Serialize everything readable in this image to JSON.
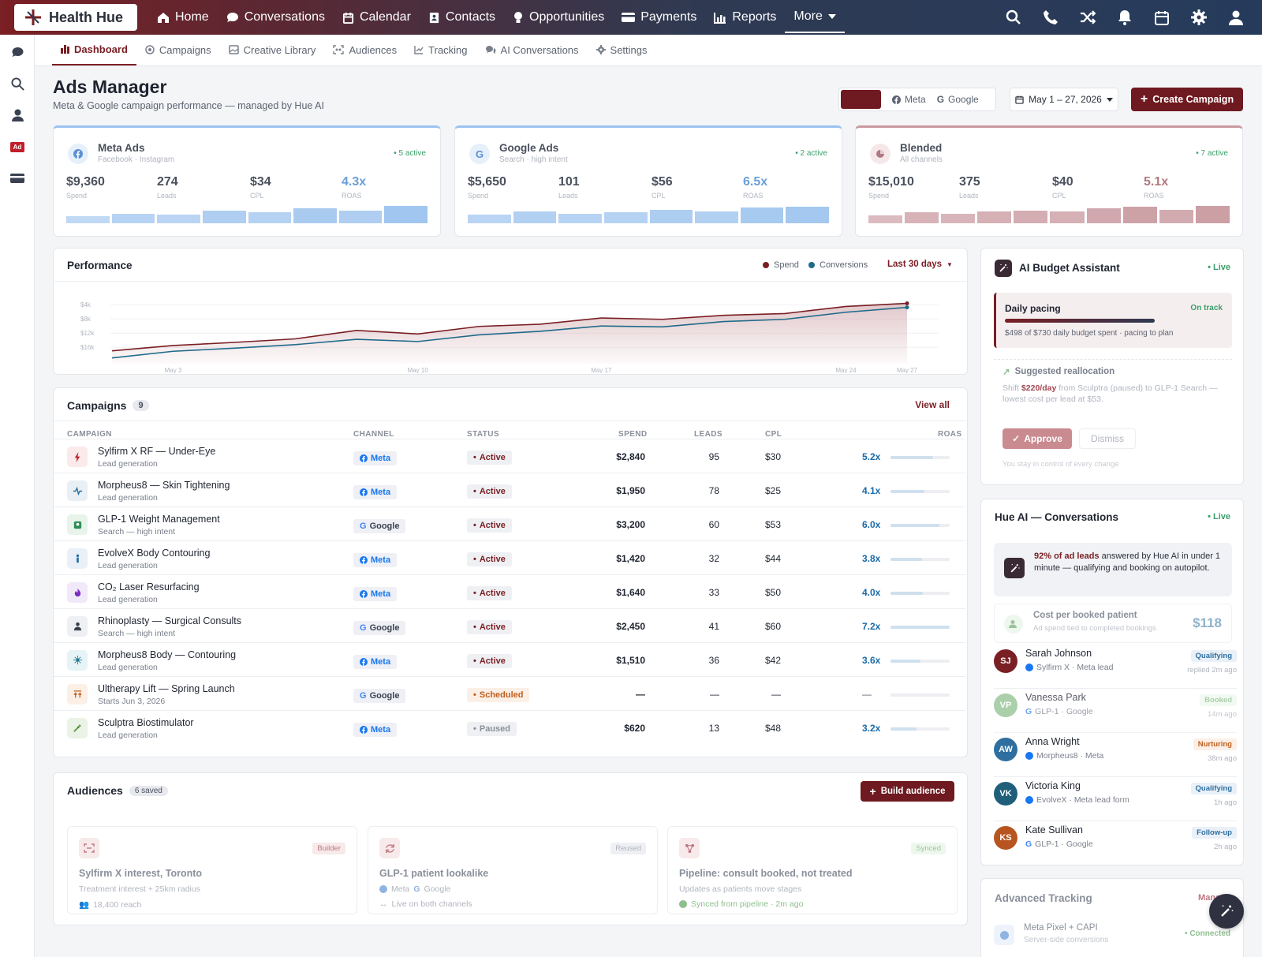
{
  "app": {
    "name": "Health Hue"
  },
  "topnav": {
    "items": [
      {
        "label": "Home",
        "icon": "home-icon"
      },
      {
        "label": "Conversations",
        "icon": "chat-icon"
      },
      {
        "label": "Calendar",
        "icon": "calendar-icon"
      },
      {
        "label": "Contacts",
        "icon": "contacts-icon"
      },
      {
        "label": "Opportunities",
        "icon": "lightbulb-icon"
      },
      {
        "label": "Payments",
        "icon": "card-icon"
      },
      {
        "label": "Reports",
        "icon": "bar-chart-icon"
      },
      {
        "label": "More",
        "icon": "caret-down-icon"
      }
    ],
    "right_icons": [
      "search-icon",
      "phone-icon",
      "shuffle-icon",
      "bell-icon",
      "calendar-icon",
      "gear-icon",
      "user-icon"
    ]
  },
  "sidebar": {
    "icons": [
      "chat-icon",
      "search-icon",
      "user-icon",
      "ad-icon",
      "card-icon"
    ],
    "ad_label": "Ad"
  },
  "subnav": {
    "tabs": [
      {
        "label": "Dashboard",
        "icon": "bar-chart-icon"
      },
      {
        "label": "Campaigns",
        "icon": "target-icon"
      },
      {
        "label": "Creative Library",
        "icon": "image-icon"
      },
      {
        "label": "Audiences",
        "icon": "scan-icon"
      },
      {
        "label": "Tracking",
        "icon": "line-chart-icon"
      },
      {
        "label": "AI Conversations",
        "icon": "chat-icon"
      },
      {
        "label": "Settings",
        "icon": "gear-icon"
      }
    ]
  },
  "header": {
    "title": "Ads Manager",
    "subtitle": "Meta & Google campaign performance — managed by Hue AI",
    "channel_toggle": {
      "meta": "Meta",
      "google": "Google"
    },
    "date_range": "May 1 – 27, 2026",
    "create_label": "Create Campaign"
  },
  "kpis": [
    {
      "name": "Meta Ads",
      "sub": "Facebook · Instagram",
      "active": "5 active",
      "stats": [
        {
          "v": "$9,360",
          "l": "Spend"
        },
        {
          "v": "274",
          "l": "Leads"
        },
        {
          "v": "$34",
          "l": "CPL"
        },
        {
          "v": "4.3x",
          "l": "ROAS"
        }
      ],
      "bars": [
        0.35,
        0.5,
        0.45,
        0.65,
        0.55,
        0.75,
        0.65,
        0.9
      ]
    },
    {
      "name": "Google Ads",
      "sub": "Search · high intent",
      "active": "2 active",
      "stats": [
        {
          "v": "$5,650",
          "l": "Spend"
        },
        {
          "v": "101",
          "l": "Leads"
        },
        {
          "v": "$56",
          "l": "CPL"
        },
        {
          "v": "6.5x",
          "l": "ROAS"
        }
      ],
      "bars": [
        0.45,
        0.6,
        0.5,
        0.55,
        0.7,
        0.6,
        0.8,
        0.85
      ]
    },
    {
      "name": "Blended",
      "sub": "All channels",
      "active": "7 active",
      "stats": [
        {
          "v": "$15,010",
          "l": "Spend"
        },
        {
          "v": "375",
          "l": "Leads"
        },
        {
          "v": "$40",
          "l": "CPL"
        },
        {
          "v": "5.1x",
          "l": "ROAS"
        }
      ],
      "bars": [
        0.4,
        0.55,
        0.5,
        0.6,
        0.65,
        0.6,
        0.75,
        0.85,
        0.7,
        0.9
      ]
    }
  ],
  "performance": {
    "title": "Performance",
    "legend_spend": "Spend",
    "legend_conv": "Conversions",
    "range_label": "Last 30 days"
  },
  "chart_data": {
    "type": "area",
    "x": [
      "May 1",
      "May 3",
      "May 5",
      "May 7",
      "May 9",
      "May 11",
      "May 13",
      "May 15",
      "May 17",
      "May 19",
      "May 21",
      "May 23",
      "May 25",
      "May 27"
    ],
    "x_ticks": [
      "May 3",
      "May 10",
      "May 17",
      "May 24",
      "May 27"
    ],
    "y_ticks": [
      "$4k",
      "$8k",
      "$12k",
      "$16k"
    ],
    "ylim": [
      2,
      18
    ],
    "series": [
      {
        "name": "Spend",
        "color": "#7a1f24",
        "values": [
          4.9,
          6.1,
          6.8,
          7.6,
          9.5,
          8.7,
          10.4,
          10.9,
          12.3,
          12.0,
          12.9,
          13.3,
          14.9,
          15.6
        ]
      },
      {
        "name": "Conversions",
        "color": "#1f6a8a",
        "values": [
          3.3,
          4.8,
          5.5,
          6.3,
          7.5,
          7.0,
          8.5,
          9.3,
          10.5,
          10.3,
          11.5,
          12.0,
          13.6,
          14.7
        ]
      }
    ]
  },
  "campaigns": {
    "title": "Campaigns",
    "count": "9",
    "view_all": "View all",
    "headers": {
      "campaign": "CAMPAIGN",
      "channel": "CHANNEL",
      "status": "STATUS",
      "spend": "SPEND",
      "leads": "LEADS",
      "cpl": "CPL",
      "roas": "ROAS"
    },
    "rows": [
      {
        "name": "Sylfirm X RF — Under-Eye",
        "sub": "Lead generation",
        "icon": "bolt-icon",
        "channel": "Meta",
        "status": "Active",
        "spend": "$2,840",
        "leads": "95",
        "cpl": "$30",
        "roas": "5.2x",
        "roas_frac": 0.72
      },
      {
        "name": "Morpheus8 — Skin Tightening",
        "sub": "Lead generation",
        "icon": "pulse-icon",
        "channel": "Meta",
        "status": "Active",
        "spend": "$1,950",
        "leads": "78",
        "cpl": "$25",
        "roas": "4.1x",
        "roas_frac": 0.57
      },
      {
        "name": "GLP-1 Weight Management",
        "sub": "Search — high intent",
        "icon": "scale-icon",
        "channel": "Google",
        "status": "Active",
        "spend": "$3,200",
        "leads": "60",
        "cpl": "$53",
        "roas": "6.0x",
        "roas_frac": 0.83
      },
      {
        "name": "EvolveX Body Contouring",
        "sub": "Lead generation",
        "icon": "body-icon",
        "channel": "Meta",
        "status": "Active",
        "spend": "$1,420",
        "leads": "32",
        "cpl": "$44",
        "roas": "3.8x",
        "roas_frac": 0.53
      },
      {
        "name": "CO₂ Laser Resurfacing",
        "sub": "Lead generation",
        "icon": "flame-icon",
        "channel": "Meta",
        "status": "Active",
        "spend": "$1,640",
        "leads": "33",
        "cpl": "$50",
        "roas": "4.0x",
        "roas_frac": 0.55
      },
      {
        "name": "Rhinoplasty — Surgical Consults",
        "sub": "Search — high intent",
        "icon": "person-icon",
        "channel": "Google",
        "status": "Active",
        "spend": "$2,450",
        "leads": "41",
        "cpl": "$60",
        "roas": "7.2x",
        "roas_frac": 1.0
      },
      {
        "name": "Morpheus8 Body — Contouring",
        "sub": "Lead generation",
        "icon": "sparkle-icon",
        "channel": "Meta",
        "status": "Active",
        "spend": "$1,510",
        "leads": "36",
        "cpl": "$42",
        "roas": "3.6x",
        "roas_frac": 0.5
      },
      {
        "name": "Ultherapy Lift — Spring Launch",
        "sub": "Starts Jun 3, 2026",
        "icon": "lift-icon",
        "channel": "Google",
        "status": "Scheduled",
        "spend": "—",
        "leads": "—",
        "cpl": "—",
        "roas": "—",
        "roas_frac": 0
      },
      {
        "name": "Sculptra Biostimulator",
        "sub": "Lead generation",
        "icon": "syringe-icon",
        "channel": "Meta",
        "status": "Paused",
        "spend": "$620",
        "leads": "13",
        "cpl": "$48",
        "roas": "3.2x",
        "roas_frac": 0.44
      }
    ]
  },
  "audiences": {
    "title": "Audiences",
    "count": "6 saved",
    "build_label": "Build audience",
    "cards": [
      {
        "name": "Sylfirm X interest, Toronto",
        "tag": "Builder",
        "line1": "Treatment interest + 25km radius",
        "line2": "18,400 reach",
        "icon": "scan-icon"
      },
      {
        "name": "GLP-1 patient lookalike",
        "tag": "Reused",
        "line1_a": "Meta",
        "line1_b": "Google",
        "line2": "Live on both channels",
        "icon": "refresh-icon"
      },
      {
        "name": "Pipeline: consult booked, not treated",
        "tag": "Synced",
        "line1": "Updates as patients move stages",
        "line2": "Synced from pipeline · 2m ago",
        "icon": "nodes-icon"
      }
    ]
  },
  "budget": {
    "title": "AI Budget Assistant",
    "live": "Live",
    "pacing_title": "Daily pacing",
    "pacing_status": "On track",
    "pacing_frac": 0.68,
    "pacing_text": "$498 of $730 daily budget spent · pacing to plan",
    "realloc_title": "Suggested reallocation",
    "realloc_pre": "Shift ",
    "realloc_amount": "$220/day",
    "realloc_post": " from Sculptra (paused) to GLP-1 Search — lowest cost per lead at $53.",
    "approve": "Approve",
    "dismiss": "Dismiss",
    "footnote": "You stay in control of every change"
  },
  "hue_ai": {
    "title": "Hue AI — Conversations",
    "live": "Live",
    "highlight_bold": "92% of ad leads",
    "highlight_rest": " answered by Hue AI in under 1 minute — qualifying and booking on autopilot.",
    "cpb_title": "Cost per booked patient",
    "cpb_sub": "Ad spend tied to completed bookings",
    "cpb_value": "$118",
    "conversations": [
      {
        "initials": "SJ",
        "name": "Sarah Johnson",
        "src": "Sylfirm X · Meta lead",
        "channel": "meta",
        "tag": "Qualifying",
        "time": "replied 2m ago",
        "color": "#7a1f24"
      },
      {
        "initials": "VP",
        "name": "Vanessa Park",
        "src": "GLP-1 · Google",
        "channel": "google",
        "tag": "Booked",
        "time": "14m ago",
        "color": "#8fbf8f"
      },
      {
        "initials": "AW",
        "name": "Anna Wright",
        "src": "Morpheus8 · Meta",
        "channel": "meta",
        "tag": "Nurturing",
        "time": "38m ago",
        "color": "#2f6f9f"
      },
      {
        "initials": "VK",
        "name": "Victoria King",
        "src": "EvolveX · Meta lead form",
        "channel": "meta",
        "tag": "Qualifying",
        "time": "1h ago",
        "color": "#1f5f7a"
      },
      {
        "initials": "KS",
        "name": "Kate Sullivan",
        "src": "GLP-1 · Google",
        "channel": "google",
        "tag": "Follow-up",
        "time": "2h ago",
        "color": "#b8541f"
      }
    ]
  },
  "tracking": {
    "title": "Advanced Tracking",
    "manage": "Manage",
    "item_name": "Meta Pixel + CAPI",
    "item_sub": "Server-side conversions",
    "item_status": "Connected"
  },
  "colors": {
    "brand": "#7a1f24",
    "meta": "#1877f2",
    "google_blue": "#4285f4",
    "success": "#3aa06a"
  }
}
